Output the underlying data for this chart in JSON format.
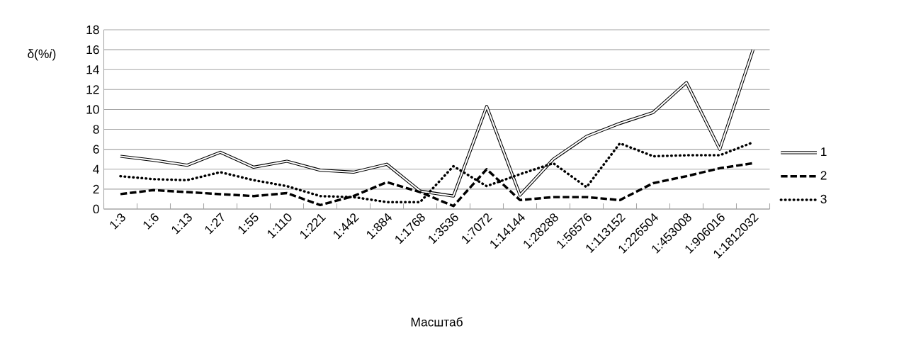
{
  "chart_data": {
    "type": "line",
    "ylabel": "δ(%*i*)",
    "xlabel": "Масштаб",
    "categories": [
      "1:3",
      "1:6",
      "1:13",
      "1:27",
      "1:55",
      "1:110",
      "1:221",
      "1:442",
      "1:884",
      "1:1768",
      "1:3536",
      "1:7072",
      "1:14144",
      "1:28288",
      "1:56576",
      "1:113152",
      "1:226504",
      "1:453008",
      "1:906016",
      "1:1812032"
    ],
    "series": [
      {
        "name": "1",
        "color": "#000000",
        "line_style": "solid",
        "values": [
          5.3,
          4.9,
          4.4,
          5.7,
          4.2,
          4.8,
          3.9,
          3.7,
          4.5,
          1.8,
          1.3,
          10.3,
          1.4,
          5.0,
          7.3,
          8.6,
          9.7,
          12.7,
          6.0,
          16.0
        ]
      },
      {
        "name": "2",
        "color": "#000000",
        "line_style": "dashed",
        "values": [
          1.5,
          1.9,
          1.7,
          1.5,
          1.3,
          1.6,
          0.4,
          1.3,
          2.7,
          1.7,
          0.3,
          4.0,
          0.9,
          1.2,
          1.2,
          0.9,
          2.6,
          3.3,
          4.1,
          4.6
        ]
      },
      {
        "name": "3",
        "color": "#000000",
        "line_style": "dotted",
        "values": [
          3.3,
          3.0,
          2.9,
          3.7,
          2.9,
          2.3,
          1.3,
          1.2,
          0.7,
          0.7,
          4.3,
          2.3,
          3.5,
          4.6,
          2.2,
          6.6,
          5.3,
          5.4,
          5.4,
          6.7
        ]
      }
    ],
    "ylim": [
      0,
      18
    ],
    "yticks": [
      0,
      2,
      4,
      6,
      8,
      10,
      12,
      14,
      16,
      18
    ],
    "grid": "y",
    "legend": "right",
    "marker": "none"
  }
}
